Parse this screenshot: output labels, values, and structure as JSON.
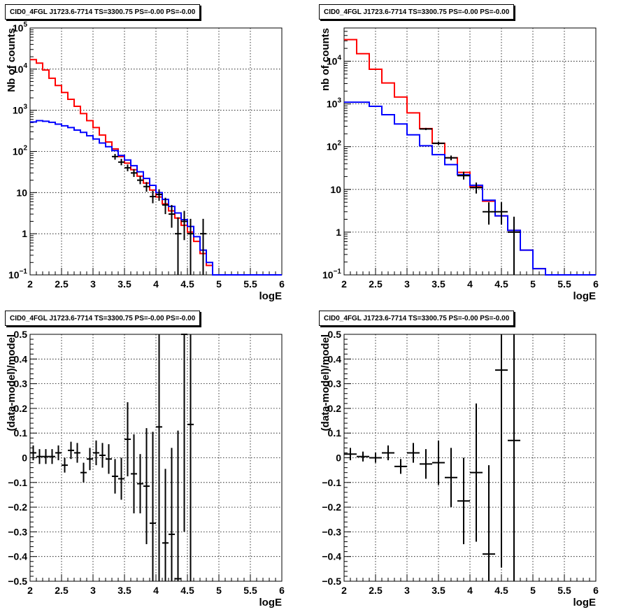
{
  "chart_data": [
    {
      "id": "p1",
      "type": "line",
      "title": "CID0_4FGL J1723.6-7714 TS=3300.75 PS=-0.00 PS=-0.00",
      "xlabel": "logE",
      "ylabel": "Nb of counts",
      "xlim": [
        2,
        6
      ],
      "ylim": [
        0.1,
        100000
      ],
      "yscale": "log",
      "x_ticks": [
        "2",
        "2.5",
        "3",
        "3.5",
        "4",
        "4.5",
        "5",
        "5.5",
        "6"
      ],
      "y_ticks": [
        {
          "value": 0.1,
          "base": "10",
          "exp": "−1"
        },
        {
          "value": 1,
          "label": "1"
        },
        {
          "value": 10,
          "label": "10"
        },
        {
          "value": 100,
          "base": "10",
          "exp": "2"
        },
        {
          "value": 1000,
          "base": "10",
          "exp": "3"
        },
        {
          "value": 10000,
          "base": "10",
          "exp": "4"
        },
        {
          "value": 100000,
          "base": "10",
          "exp": "5"
        }
      ],
      "grid": true,
      "bin_edges": [
        2.0,
        2.1,
        2.2,
        2.3,
        2.4,
        2.5,
        2.6,
        2.7,
        2.8,
        2.9,
        3.0,
        3.1,
        3.2,
        3.3,
        3.4,
        3.5,
        3.6,
        3.7,
        3.8,
        3.9,
        4.0,
        4.1,
        4.2,
        4.3,
        4.4,
        4.5,
        4.6,
        4.7,
        4.8,
        4.9,
        5.0,
        5.1,
        5.2,
        5.3,
        5.4,
        5.5,
        5.6,
        5.7,
        5.8,
        5.9,
        6.0
      ],
      "series": [
        {
          "color": "#ff0000",
          "style": "step",
          "values": [
            17000,
            14000,
            9500,
            6000,
            4000,
            2700,
            1850,
            1250,
            830,
            560,
            380,
            250,
            170,
            115,
            75,
            52,
            36,
            25,
            17,
            11.5,
            7.8,
            5.3,
            3.6,
            2.4,
            1.6,
            1.1,
            0.65,
            0.33,
            0.17,
            0.1,
            0.1,
            0.1,
            0.1,
            0.1,
            0.1,
            0.1,
            0.1,
            0.1,
            0.1,
            0.1
          ]
        },
        {
          "color": "#0000ff",
          "style": "step",
          "values": [
            520,
            560,
            540,
            510,
            460,
            420,
            380,
            330,
            290,
            240,
            200,
            160,
            130,
            105,
            80,
            62,
            45,
            32,
            22,
            15,
            10,
            6.8,
            4.6,
            3.2,
            2.2,
            1.5,
            0.85,
            0.4,
            0.2,
            0.1,
            0.1,
            0.1,
            0.1,
            0.1,
            0.1,
            0.1,
            0.1,
            0.1,
            0.1,
            0.1
          ]
        }
      ],
      "points": [
        {
          "x": 3.35,
          "y": 75,
          "lo": 63,
          "hi": 87
        },
        {
          "x": 3.45,
          "y": 55,
          "lo": 46,
          "hi": 66
        },
        {
          "x": 3.55,
          "y": 40,
          "lo": 33,
          "hi": 48
        },
        {
          "x": 3.65,
          "y": 30,
          "lo": 24,
          "hi": 37
        },
        {
          "x": 3.75,
          "y": 20,
          "lo": 16,
          "hi": 25
        },
        {
          "x": 3.85,
          "y": 14,
          "lo": 10.5,
          "hi": 18
        },
        {
          "x": 3.95,
          "y": 8,
          "lo": 5.5,
          "hi": 11
        },
        {
          "x": 4.05,
          "y": 9,
          "lo": 6.3,
          "hi": 12
        },
        {
          "x": 4.15,
          "y": 5,
          "lo": 3,
          "hi": 7.5
        },
        {
          "x": 4.25,
          "y": 3,
          "lo": 1.4,
          "hi": 5
        },
        {
          "x": 4.35,
          "y": 1,
          "lo": 0.1,
          "hi": 2.5
        },
        {
          "x": 4.45,
          "y": 2,
          "lo": 0.7,
          "hi": 3.6
        },
        {
          "x": 4.55,
          "y": 1,
          "lo": 0.1,
          "hi": 2.3
        },
        {
          "x": 4.75,
          "y": 1,
          "lo": 0.1,
          "hi": 2.3
        }
      ]
    },
    {
      "id": "p2",
      "type": "line",
      "title": "CID0_4FGL J1723.6-7714 TS=3300.75 PS=-0.00 PS=-0.00",
      "xlabel": "logE",
      "ylabel": "nb of counts",
      "xlim": [
        2,
        6
      ],
      "ylim": [
        0.1,
        60000
      ],
      "yscale": "log",
      "x_ticks": [
        "2",
        "2.5",
        "3",
        "3.5",
        "4",
        "4.5",
        "5",
        "5.5",
        "6"
      ],
      "y_ticks": [
        {
          "value": 0.1,
          "base": "10",
          "exp": "−1"
        },
        {
          "value": 1,
          "label": "1"
        },
        {
          "value": 10,
          "label": "10"
        },
        {
          "value": 100,
          "base": "10",
          "exp": "2"
        },
        {
          "value": 1000,
          "base": "10",
          "exp": "3"
        },
        {
          "value": 10000,
          "base": "10",
          "exp": "4"
        }
      ],
      "grid": true,
      "bin_edges": [
        2.0,
        2.2,
        2.4,
        2.6,
        2.8,
        3.0,
        3.2,
        3.4,
        3.6,
        3.8,
        4.0,
        4.2,
        4.4,
        4.6,
        4.8,
        5.0,
        5.2,
        5.4,
        5.6,
        5.8,
        6.0
      ],
      "series": [
        {
          "color": "#ff0000",
          "style": "step",
          "values": [
            32000,
            15000,
            6500,
            3100,
            1450,
            620,
            265,
            120,
            55,
            25,
            11.5,
            5.3,
            2.4,
            1.1,
            0.38,
            0.14,
            0.1,
            0.1,
            0.1,
            0.1
          ]
        },
        {
          "color": "#0000ff",
          "style": "step",
          "values": [
            1100,
            1100,
            880,
            560,
            340,
            190,
            105,
            65,
            38,
            22,
            12.5,
            5.6,
            2.4,
            1.1,
            0.38,
            0.14,
            0.1,
            0.1,
            0.1,
            0.1
          ]
        }
      ],
      "points": [
        {
          "x": 3.3,
          "y": 260,
          "lo": 245,
          "hi": 275
        },
        {
          "x": 3.5,
          "y": 120,
          "lo": 110,
          "hi": 131
        },
        {
          "x": 3.7,
          "y": 55,
          "lo": 48,
          "hi": 62
        },
        {
          "x": 3.9,
          "y": 21,
          "lo": 17,
          "hi": 26
        },
        {
          "x": 4.1,
          "y": 11,
          "lo": 8,
          "hi": 14.5
        },
        {
          "x": 4.3,
          "y": 3,
          "lo": 1.5,
          "hi": 5
        },
        {
          "x": 4.5,
          "y": 3,
          "lo": 1.5,
          "hi": 5
        },
        {
          "x": 4.7,
          "y": 1,
          "lo": 0.1,
          "hi": 2.3
        }
      ]
    },
    {
      "id": "p3",
      "type": "scatter",
      "title": "CID0_4FGL J1723.6-7714 TS=3300.75 PS=-0.00 PS=-0.00",
      "xlabel": "logE",
      "ylabel": "(data-model)/model",
      "xlim": [
        2,
        6
      ],
      "ylim": [
        -0.5,
        0.5
      ],
      "yscale": "linear",
      "x_ticks": [
        "2",
        "2.5",
        "3",
        "3.5",
        "4",
        "4.5",
        "5",
        "5.5",
        "6"
      ],
      "y_ticks": [
        "−0.5",
        "−0.4",
        "−0.3",
        "−0.2",
        "−0.1",
        "0",
        "0.1",
        "0.2",
        "0.3",
        "0.4",
        "0.5"
      ],
      "grid": true,
      "half_width": 0.05,
      "points": [
        {
          "x": 2.05,
          "y": 0.02,
          "err": 0.03
        },
        {
          "x": 2.15,
          "y": 0.005,
          "err": 0.03
        },
        {
          "x": 2.25,
          "y": 0.005,
          "err": 0.03
        },
        {
          "x": 2.35,
          "y": 0.005,
          "err": 0.03
        },
        {
          "x": 2.45,
          "y": 0.02,
          "err": 0.03
        },
        {
          "x": 2.55,
          "y": -0.03,
          "err": 0.03
        },
        {
          "x": 2.65,
          "y": 0.03,
          "err": 0.035
        },
        {
          "x": 2.75,
          "y": 0.02,
          "err": 0.04
        },
        {
          "x": 2.85,
          "y": -0.06,
          "err": 0.04
        },
        {
          "x": 2.95,
          "y": -0.005,
          "err": 0.045
        },
        {
          "x": 3.05,
          "y": 0.02,
          "err": 0.05
        },
        {
          "x": 3.15,
          "y": 0.01,
          "err": 0.05
        },
        {
          "x": 3.25,
          "y": -0.005,
          "err": 0.06
        },
        {
          "x": 3.35,
          "y": -0.075,
          "err": 0.07
        },
        {
          "x": 3.45,
          "y": -0.085,
          "err": 0.085
        },
        {
          "x": 3.55,
          "y": 0.075,
          "err": 0.15
        },
        {
          "x": 3.65,
          "y": -0.065,
          "err": 0.16
        },
        {
          "x": 3.75,
          "y": -0.105,
          "err": 0.12
        },
        {
          "x": 3.85,
          "y": -0.115,
          "err": 0.235
        },
        {
          "x": 3.95,
          "y": -0.265,
          "err": 0.37
        },
        {
          "x": 4.05,
          "y": 0.125,
          "err": 0.65
        },
        {
          "x": 4.15,
          "y": -0.345,
          "err": 0.3
        },
        {
          "x": 4.25,
          "y": -0.31,
          "err": 0.35
        },
        {
          "x": 4.35,
          "y": -0.49,
          "err": 0.6
        },
        {
          "x": 4.45,
          "y": 0.5,
          "err": 0.8
        },
        {
          "x": 4.55,
          "y": 0.135,
          "err": 0.9
        }
      ]
    },
    {
      "id": "p4",
      "type": "scatter",
      "title": "CID0_4FGL J1723.6-7714 TS=3300.75 PS=-0.00 PS=-0.00",
      "xlabel": "logE",
      "ylabel": "(data-model)/model",
      "xlim": [
        2,
        6
      ],
      "ylim": [
        -0.5,
        0.5
      ],
      "yscale": "linear",
      "x_ticks": [
        "2",
        "2.5",
        "3",
        "3.5",
        "4",
        "4.5",
        "5",
        "5.5",
        "6"
      ],
      "y_ticks": [
        "−0.5",
        "−0.4",
        "−0.3",
        "−0.2",
        "−0.1",
        "0",
        "0.1",
        "0.2",
        "0.3",
        "0.4",
        "0.5"
      ],
      "grid": true,
      "half_width": 0.1,
      "points": [
        {
          "x": 2.1,
          "y": 0.015,
          "err": 0.025
        },
        {
          "x": 2.3,
          "y": 0.005,
          "err": 0.02
        },
        {
          "x": 2.5,
          "y": 0.0,
          "err": 0.02
        },
        {
          "x": 2.7,
          "y": 0.02,
          "err": 0.03
        },
        {
          "x": 2.9,
          "y": -0.035,
          "err": 0.03
        },
        {
          "x": 3.1,
          "y": 0.02,
          "err": 0.04
        },
        {
          "x": 3.3,
          "y": -0.025,
          "err": 0.06
        },
        {
          "x": 3.5,
          "y": -0.02,
          "err": 0.09
        },
        {
          "x": 3.7,
          "y": -0.08,
          "err": 0.12
        },
        {
          "x": 3.9,
          "y": -0.175,
          "err": 0.175
        },
        {
          "x": 4.1,
          "y": -0.06,
          "err": 0.28
        },
        {
          "x": 4.3,
          "y": -0.39,
          "err": 0.36
        },
        {
          "x": 4.5,
          "y": 0.355,
          "err": 0.8
        },
        {
          "x": 4.7,
          "y": 0.07,
          "err": 0.9
        }
      ]
    }
  ]
}
